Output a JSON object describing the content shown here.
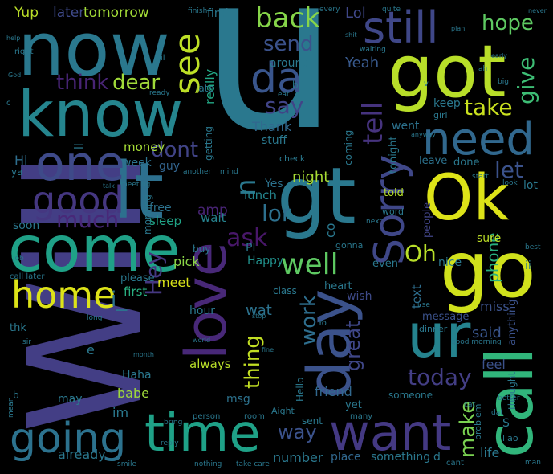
{
  "words": [
    {
      "text": "Will",
      "color": "#433e85"
    },
    {
      "text": "u",
      "color": "#2a788e"
    },
    {
      "text": "now",
      "color": "#2a788e"
    },
    {
      "text": "know",
      "color": "#25858e"
    },
    {
      "text": "got",
      "color": "#b8de29"
    },
    {
      "text": "Ok",
      "color": "#dde318"
    },
    {
      "text": "go",
      "color": "#d0e11c"
    },
    {
      "text": "call",
      "color": "#31b57b"
    },
    {
      "text": "lt",
      "color": "#2d708e"
    },
    {
      "text": "gt",
      "color": "#2a788e"
    },
    {
      "text": "come",
      "color": "#1fa187"
    },
    {
      "text": "love",
      "color": "#482878"
    },
    {
      "text": "day",
      "color": "#3b528b"
    },
    {
      "text": "time",
      "color": "#1fa187"
    },
    {
      "text": "want",
      "color": "#443983"
    },
    {
      "text": "going",
      "color": "#2c728e"
    },
    {
      "text": "one",
      "color": "#3e4a89"
    },
    {
      "text": "need",
      "color": "#31688e"
    },
    {
      "text": "still",
      "color": "#3f4788"
    },
    {
      "text": "ur",
      "color": "#25838e"
    },
    {
      "text": "home",
      "color": "#dde318"
    },
    {
      "text": "good",
      "color": "#453781"
    },
    {
      "text": "Sorry",
      "color": "#3f4788"
    },
    {
      "text": "see",
      "color": "#bddf26"
    },
    {
      "text": "da",
      "color": "#39558c"
    },
    {
      "text": "back",
      "color": "#86d549"
    },
    {
      "text": "send",
      "color": "#3b528b"
    },
    {
      "text": "hope",
      "color": "#5ec962"
    },
    {
      "text": "give",
      "color": "#3dbc74"
    },
    {
      "text": "tell",
      "color": "#46337e"
    },
    {
      "text": "take",
      "color": "#cae11f"
    },
    {
      "text": "think",
      "color": "#482475"
    },
    {
      "text": "dear",
      "color": "#a0da39"
    },
    {
      "text": "say",
      "color": "#414487"
    },
    {
      "text": "much",
      "color": "#482878"
    },
    {
      "text": "dont",
      "color": "#414487"
    },
    {
      "text": "let",
      "color": "#3b528b"
    },
    {
      "text": "lor",
      "color": "#2d708e"
    },
    {
      "text": "ask",
      "color": "#481769"
    },
    {
      "text": "n",
      "color": "#2a788e"
    },
    {
      "text": "well",
      "color": "#5ec962"
    },
    {
      "text": "Oh",
      "color": "#b8de29"
    },
    {
      "text": "work",
      "color": "#2e6e8e"
    },
    {
      "text": "today",
      "color": "#433e85"
    },
    {
      "text": "make",
      "color": "#7ad151"
    },
    {
      "text": "way",
      "color": "#3b528b"
    },
    {
      "text": "thing",
      "color": "#c2df23"
    },
    {
      "text": "Hey",
      "color": "#453781"
    },
    {
      "text": "i_",
      "color": "#2c728e"
    },
    {
      "text": "said",
      "color": "#39558c"
    },
    {
      "text": "night",
      "color": "#a8db34"
    },
    {
      "text": "phone",
      "color": "#29af7f"
    },
    {
      "text": "tomorrow",
      "color": "#a2da37"
    },
    {
      "text": "later",
      "color": "#3e4989"
    },
    {
      "text": "Yup",
      "color": "#bade28"
    },
    {
      "text": "Lol",
      "color": "#3f4788"
    },
    {
      "text": "Yeah",
      "color": "#38598c"
    },
    {
      "text": "around",
      "color": "#2a788e"
    },
    {
      "text": "really",
      "color": "#22a785"
    },
    {
      "text": "Thank",
      "color": "#31688e"
    },
    {
      "text": "stuff",
      "color": "#2a788e"
    },
    {
      "text": "keep",
      "color": "#2a788e"
    },
    {
      "text": "went",
      "color": "#2c728e"
    },
    {
      "text": "money",
      "color": "#a5db36"
    },
    {
      "text": "week",
      "color": "#2c728e"
    },
    {
      "text": "guy",
      "color": "#32648e"
    },
    {
      "text": "meet",
      "color": "#d8e219"
    },
    {
      "text": "first",
      "color": "#28ae80"
    },
    {
      "text": "pick",
      "color": "#8bd646"
    },
    {
      "text": "amp",
      "color": "#482475"
    },
    {
      "text": "wait",
      "color": "#26828e"
    },
    {
      "text": "sleep",
      "color": "#20a386"
    },
    {
      "text": "free",
      "color": "#2c728e"
    },
    {
      "text": "lunch",
      "color": "#25858e"
    },
    {
      "text": "Yes",
      "color": "#2c728e"
    },
    {
      "text": "Happy",
      "color": "#21918c"
    },
    {
      "text": "Pl",
      "color": "#2a788e"
    },
    {
      "text": "heart",
      "color": "#2a788e"
    },
    {
      "text": "wish",
      "color": "#3e4a89"
    },
    {
      "text": "text",
      "color": "#2e6e8e"
    },
    {
      "text": "message",
      "color": "#3b528b"
    },
    {
      "text": "great",
      "color": "#3f4788"
    },
    {
      "text": "even",
      "color": "#2a788e"
    },
    {
      "text": "miss",
      "color": "#3b528b"
    },
    {
      "text": "sure",
      "color": "#bddf26"
    },
    {
      "text": "nice",
      "color": "#2a788e"
    },
    {
      "text": "people",
      "color": "#414487"
    },
    {
      "text": "lot",
      "color": "#2a788e"
    },
    {
      "text": "leave",
      "color": "#2c728e"
    },
    {
      "text": "done",
      "color": "#2a788e"
    },
    {
      "text": "told",
      "color": "#b5de2b"
    },
    {
      "text": "word",
      "color": "#2a788e"
    },
    {
      "text": "Hi",
      "color": "#2e6e8e"
    },
    {
      "text": "soon",
      "color": "#2a788e"
    },
    {
      "text": "babe",
      "color": "#9fda3a"
    },
    {
      "text": "msg",
      "color": "#2c728e"
    },
    {
      "text": "always",
      "color": "#b8de29"
    },
    {
      "text": "hour",
      "color": "#2a788e"
    },
    {
      "text": "wat",
      "color": "#2c728e"
    },
    {
      "text": "friend",
      "color": "#31688e"
    },
    {
      "text": "Haha",
      "color": "#2a788e"
    },
    {
      "text": "im",
      "color": "#2a788e"
    },
    {
      "text": "may",
      "color": "#2a788e"
    },
    {
      "text": "already",
      "color": "#2a788e"
    },
    {
      "text": "number",
      "color": "#2a788e"
    },
    {
      "text": "place",
      "color": "#31688e"
    },
    {
      "text": "something",
      "color": "#2a788e"
    },
    {
      "text": "life",
      "color": "#2a788e"
    },
    {
      "text": "feel",
      "color": "#3b528b"
    },
    {
      "text": "anything",
      "color": "#3b528b"
    },
    {
      "text": "Hello",
      "color": "#2a788e"
    },
    {
      "text": "sent",
      "color": "#2a788e"
    },
    {
      "text": "yet",
      "color": "#2a788e"
    },
    {
      "text": "someone",
      "color": "#2a788e"
    },
    {
      "text": "gonna",
      "color": "#2a788e"
    },
    {
      "text": "tonight",
      "color": "#2a788e"
    },
    {
      "text": "coming",
      "color": "#2a788e"
    },
    {
      "text": "find",
      "color": "#2a788e"
    },
    {
      "text": "late",
      "color": "#2a788e"
    },
    {
      "text": "getting",
      "color": "#2a788e"
    },
    {
      "text": "check",
      "color": "#2a788e"
    },
    {
      "text": "bit",
      "color": "#2a788e"
    },
    {
      "text": "girl",
      "color": "#2a788e"
    },
    {
      "text": "class",
      "color": "#2a788e"
    },
    {
      "text": "please",
      "color": "#2a788e"
    },
    {
      "text": "morning",
      "color": "#2a788e"
    },
    {
      "text": "buy",
      "color": "#2a788e"
    },
    {
      "text": "dinner",
      "color": "#2a788e"
    },
    {
      "text": "thk",
      "color": "#2a788e"
    },
    {
      "text": "e",
      "color": "#2a788e"
    },
    {
      "text": "co",
      "color": "#2a788e"
    },
    {
      "text": "ll",
      "color": "#2a788e"
    },
    {
      "text": "ii",
      "color": "#2a788e"
    },
    {
      "text": "S",
      "color": "#2a788e"
    },
    {
      "text": "d",
      "color": "#2a788e"
    },
    {
      "text": "ya",
      "color": "#2a788e"
    },
    {
      "text": "Aight",
      "color": "#2a788e"
    },
    {
      "text": "room",
      "color": "#2a788e"
    },
    {
      "text": "many",
      "color": "#2a788e"
    },
    {
      "text": "cant",
      "color": "#2a788e"
    },
    {
      "text": "thought",
      "color": "#2a788e"
    },
    {
      "text": "problem",
      "color": "#2a788e"
    },
    {
      "text": "liao",
      "color": "#2a788e"
    },
    {
      "text": "every",
      "color": "#2a788e"
    },
    {
      "text": "finish",
      "color": "#2a788e"
    },
    {
      "text": "quite",
      "color": "#2a788e"
    },
    {
      "text": "waiting",
      "color": "#2a788e"
    },
    {
      "text": "right",
      "color": "#2a788e"
    },
    {
      "text": "ready",
      "color": "#2a788e"
    },
    {
      "text": "call later",
      "color": "#2a788e"
    },
    {
      "text": "smile",
      "color": "#2a788e"
    },
    {
      "text": "take care",
      "color": "#2a788e"
    },
    {
      "text": "nothing",
      "color": "#2a788e"
    },
    {
      "text": "reply",
      "color": "#2a788e"
    },
    {
      "text": "bring",
      "color": "#2a788e"
    },
    {
      "text": "person",
      "color": "#2a788e"
    },
    {
      "text": "good morning",
      "color": "#2a788e"
    },
    {
      "text": "mean",
      "color": "#2a788e"
    },
    {
      "text": "job",
      "color": "#2a788e"
    },
    {
      "text": "sir",
      "color": "#2a788e"
    },
    {
      "text": "start",
      "color": "#2a788e"
    },
    {
      "text": "better",
      "color": "#2a788e"
    },
    {
      "text": "car",
      "color": "#2a788e"
    },
    {
      "text": "man",
      "color": "#2a788e"
    },
    {
      "text": "dat",
      "color": "#2a788e"
    },
    {
      "text": "use",
      "color": "#2a788e"
    },
    {
      "text": "mind",
      "color": "#2a788e"
    },
    {
      "text": "another",
      "color": "#2a788e"
    },
    {
      "text": "meeting",
      "color": "#2a788e"
    },
    {
      "text": "talk",
      "color": "#2a788e"
    },
    {
      "text": "world",
      "color": "#2a788e"
    },
    {
      "text": "long",
      "color": "#2a788e"
    },
    {
      "text": "month",
      "color": "#2a788e"
    },
    {
      "text": "anyway",
      "color": "#2a788e"
    },
    {
      "text": "next",
      "color": "#2a788e"
    },
    {
      "text": "look",
      "color": "#2a788e"
    },
    {
      "text": "best",
      "color": "#2a788e"
    },
    {
      "text": "eat",
      "color": "#2a788e"
    },
    {
      "text": "ah",
      "color": "#2a788e"
    },
    {
      "text": "big",
      "color": "#2a788e"
    },
    {
      "text": "v",
      "color": "#2a788e"
    },
    {
      "text": "c",
      "color": "#2a788e"
    },
    {
      "text": "Yo",
      "color": "#2a788e"
    },
    {
      "text": "stop",
      "color": "#2a788e"
    },
    {
      "text": "fine",
      "color": "#2a788e"
    },
    {
      "text": "help",
      "color": "#2a788e"
    },
    {
      "text": "God",
      "color": "#2a788e"
    },
    {
      "text": "shit",
      "color": "#2a788e"
    },
    {
      "text": "plan",
      "color": "#2a788e"
    },
    {
      "text": "never",
      "color": "#2a788e"
    },
    {
      "text": "early",
      "color": "#2a788e"
    },
    {
      "text": "b",
      "color": "#2a788e"
    },
    {
      "text": "il",
      "color": "#2a788e"
    }
  ]
}
